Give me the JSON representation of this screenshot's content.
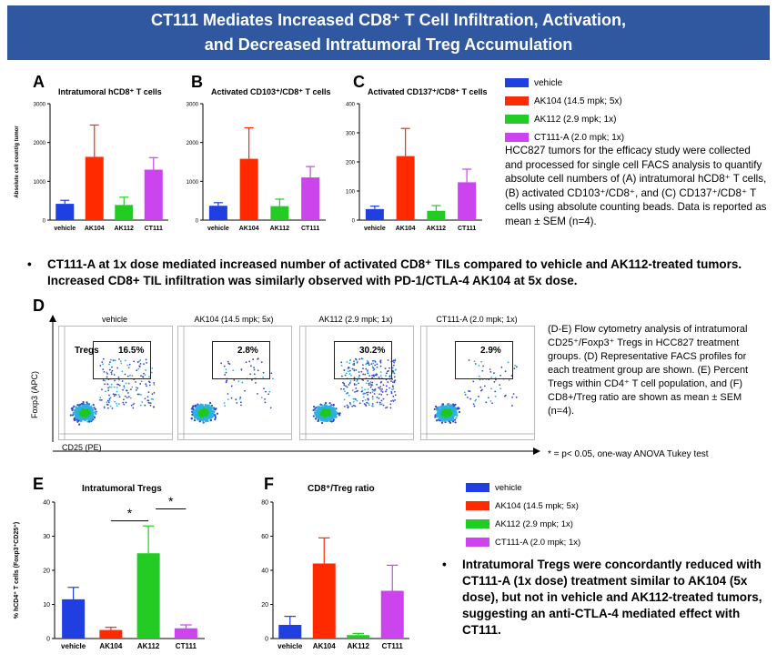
{
  "header": {
    "title_line1": "CT111 Mediates Increased CD8⁺ T Cell Infiltration, Activation,",
    "title_line2": "and Decreased Intratumoral Treg Accumulation"
  },
  "colors": {
    "vehicle": "#1f3fe0",
    "AK104": "#ff2a00",
    "AK112": "#22cc22",
    "CT111": "#cc44ee",
    "banner": "#2f58a0"
  },
  "legend": [
    {
      "label": "vehicle",
      "color": "#1f3fe0"
    },
    {
      "label": "AK104 (14.5 mpk; 5x)",
      "color": "#ff2a00"
    },
    {
      "label": "AK112 (2.9 mpk; 1x)",
      "color": "#22cc22"
    },
    {
      "label": "CT111-A (2.0 mpk; 1x)",
      "color": "#cc44ee"
    }
  ],
  "panels": {
    "A": {
      "letter": "A",
      "title": "Intratumoral hCD8⁺ T cells"
    },
    "B": {
      "letter": "B",
      "title": "Activated CD103⁺/CD8⁺ T cells"
    },
    "C": {
      "letter": "C",
      "title": "Activated CD137⁺/CD8⁺ T cells"
    },
    "D": {
      "letter": "D"
    },
    "E": {
      "letter": "E",
      "title": "Intratumoral Tregs"
    },
    "F": {
      "letter": "F",
      "title": "CD8⁺/Treg ratio"
    }
  },
  "ylabel_abc": "Absolute cell count/g tumor",
  "ylabel_e": "% hCD4⁺ T cells (Foxp3⁺CD25⁺)",
  "chart_data": [
    {
      "type": "bar",
      "panel": "A",
      "title": "Intratumoral hCD8⁺ T cells",
      "ylabel": "Absolute cell count/g tumor",
      "categories": [
        "vehicle",
        "AK104",
        "AK112",
        "CT111"
      ],
      "values": [
        420,
        1630,
        390,
        1300
      ],
      "errors": [
        90,
        820,
        200,
        310
      ],
      "ylim": [
        0,
        3000
      ],
      "yticks": [
        0,
        1000,
        2000,
        3000
      ]
    },
    {
      "type": "bar",
      "panel": "B",
      "title": "Activated CD103⁺/CD8⁺ T cells",
      "categories": [
        "vehicle",
        "AK104",
        "AK112",
        "CT111"
      ],
      "values": [
        370,
        1580,
        360,
        1100
      ],
      "errors": [
        80,
        800,
        180,
        280
      ],
      "ylim": [
        0,
        3000
      ],
      "yticks": [
        0,
        1000,
        2000,
        3000
      ]
    },
    {
      "type": "bar",
      "panel": "C",
      "title": "Activated CD137⁺/CD8⁺ T cells",
      "categories": [
        "vehicle",
        "AK104",
        "AK112",
        "CT111"
      ],
      "values": [
        38,
        220,
        32,
        130
      ],
      "errors": [
        10,
        95,
        18,
        45
      ],
      "ylim": [
        0,
        400
      ],
      "yticks": [
        0,
        100,
        200,
        300,
        400
      ]
    },
    {
      "type": "bar",
      "panel": "E",
      "title": "Intratumoral Tregs",
      "ylabel": "% hCD4⁺ T cells (Foxp3⁺CD25⁺)",
      "categories": [
        "vehicle",
        "AK104",
        "AK112",
        "CT111"
      ],
      "values": [
        11.5,
        2.5,
        25,
        3
      ],
      "errors": [
        3.5,
        0.8,
        8,
        1
      ],
      "ylim": [
        0,
        40
      ],
      "yticks": [
        0,
        10,
        20,
        30,
        40
      ],
      "annotations": [
        "*",
        "*"
      ]
    },
    {
      "type": "bar",
      "panel": "F",
      "title": "CD8⁺/Treg ratio",
      "categories": [
        "vehicle",
        "AK104",
        "AK112",
        "CT111"
      ],
      "values": [
        8,
        44,
        2,
        28
      ],
      "errors": [
        5,
        15,
        1,
        15
      ],
      "ylim": [
        0,
        80
      ],
      "yticks": [
        0,
        20,
        40,
        60,
        80
      ]
    }
  ],
  "description_top": "HCC827 tumors for the efficacy study were collected and processed for single cell FACS analysis to quantify absolute cell numbers of (A) intratumoral hCD8⁺ T cells, (B) activated CD103⁺/CD8⁺, and (C) CD137⁺/CD8⁺ T cells using absolute counting beads. Data is reported as mean ± SEM (n=4).",
  "bullet1": "CT111-A at 1x dose mediated increased number of activated CD8⁺ TILs compared to vehicle and AK112-treated tumors. Increased CD8+ TIL infiltration was similarly observed with PD-1/CTLA-4 AK104 at 5x dose.",
  "facs": {
    "yaxis": "Foxp3 (APC)",
    "xaxis": "CD25 (PE)",
    "gate_label": "Tregs",
    "plots": [
      {
        "title": "vehicle",
        "pct": "16.5%"
      },
      {
        "title": "AK104 (14.5 mpk; 5x)",
        "pct": "2.8%"
      },
      {
        "title": "AK112 (2.9 mpk; 1x)",
        "pct": "30.2%"
      },
      {
        "title": "CT111-A (2.0 mpk; 1x)",
        "pct": "2.9%"
      }
    ]
  },
  "description_d": "(D-E) Flow cytometry analysis of intratumoral CD25⁺/Foxp3⁺ Tregs in HCC827 treatment groups. (D) Representative FACS profiles for each treatment group are shown. (E) Percent Tregs within CD4⁺ T cell population, and (F) CD8+/Treg ratio are shown as mean ± SEM (n=4).",
  "stat_note": "* = p< 0.05, one-way ANOVA Tukey test",
  "bullet2": "Intratumoral Tregs were concordantly reduced with CT111-A (1x dose) treatment similar to AK104 (5x dose), but not in vehicle and AK112-treated tumors, suggesting an anti-CTLA-4 mediated effect with CT111."
}
